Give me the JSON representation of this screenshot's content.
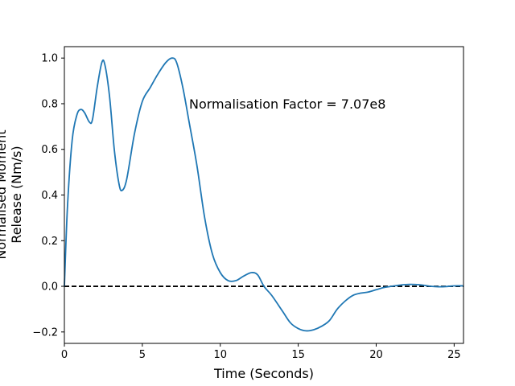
{
  "chart_data": {
    "type": "line",
    "title": "",
    "xlabel": "Time (Seconds)",
    "ylabel_lines": [
      "Normalised Moment",
      "Release (Nm/s)"
    ],
    "xlim": [
      0,
      25.6
    ],
    "ylim": [
      -0.25,
      1.05
    ],
    "x_ticks": [
      0,
      5,
      10,
      15,
      20,
      25
    ],
    "x_tick_labels": [
      "0",
      "5",
      "10",
      "15",
      "20",
      "25"
    ],
    "y_ticks": [
      -0.2,
      0.0,
      0.2,
      0.4,
      0.6,
      0.8,
      1.0
    ],
    "y_tick_labels": [
      "−0.2",
      "0.0",
      "0.2",
      "0.4",
      "0.6",
      "0.8",
      "1.0"
    ],
    "grid": false,
    "annotation": {
      "text": "Normalisation Factor = 7.07e8",
      "x": 8.0,
      "y": 0.8
    },
    "reference_line": {
      "y": 0.0,
      "style": "dashed",
      "color": "#000000"
    },
    "series": [
      {
        "color": "#1f77b4",
        "points": [
          [
            0.0,
            0.0
          ],
          [
            0.2,
            0.35
          ],
          [
            0.5,
            0.64
          ],
          [
            0.8,
            0.75
          ],
          [
            1.05,
            0.775
          ],
          [
            1.3,
            0.76
          ],
          [
            1.6,
            0.72
          ],
          [
            1.8,
            0.73
          ],
          [
            2.1,
            0.87
          ],
          [
            2.4,
            0.98
          ],
          [
            2.6,
            0.97
          ],
          [
            2.9,
            0.83
          ],
          [
            3.2,
            0.6
          ],
          [
            3.5,
            0.45
          ],
          [
            3.7,
            0.42
          ],
          [
            4.0,
            0.47
          ],
          [
            4.5,
            0.67
          ],
          [
            5.0,
            0.81
          ],
          [
            5.5,
            0.87
          ],
          [
            6.0,
            0.93
          ],
          [
            6.5,
            0.98
          ],
          [
            6.9,
            1.0
          ],
          [
            7.2,
            0.98
          ],
          [
            7.6,
            0.87
          ],
          [
            8.0,
            0.72
          ],
          [
            8.5,
            0.53
          ],
          [
            9.0,
            0.3
          ],
          [
            9.5,
            0.14
          ],
          [
            10.0,
            0.06
          ],
          [
            10.5,
            0.025
          ],
          [
            11.0,
            0.025
          ],
          [
            11.5,
            0.045
          ],
          [
            12.0,
            0.06
          ],
          [
            12.4,
            0.05
          ],
          [
            12.8,
            0.0
          ],
          [
            13.3,
            -0.04
          ],
          [
            14.0,
            -0.11
          ],
          [
            14.5,
            -0.16
          ],
          [
            15.0,
            -0.185
          ],
          [
            15.5,
            -0.195
          ],
          [
            16.0,
            -0.19
          ],
          [
            16.5,
            -0.175
          ],
          [
            17.0,
            -0.15
          ],
          [
            17.5,
            -0.1
          ],
          [
            18.0,
            -0.065
          ],
          [
            18.5,
            -0.04
          ],
          [
            19.0,
            -0.03
          ],
          [
            19.5,
            -0.025
          ],
          [
            20.0,
            -0.015
          ],
          [
            20.5,
            -0.005
          ],
          [
            21.0,
            0.0
          ],
          [
            21.5,
            0.005
          ],
          [
            22.0,
            0.008
          ],
          [
            22.5,
            0.008
          ],
          [
            23.0,
            0.005
          ],
          [
            23.5,
            0.0
          ],
          [
            24.0,
            -0.002
          ],
          [
            24.5,
            -0.001
          ],
          [
            25.0,
            0.002
          ],
          [
            25.6,
            0.002
          ]
        ]
      }
    ]
  }
}
